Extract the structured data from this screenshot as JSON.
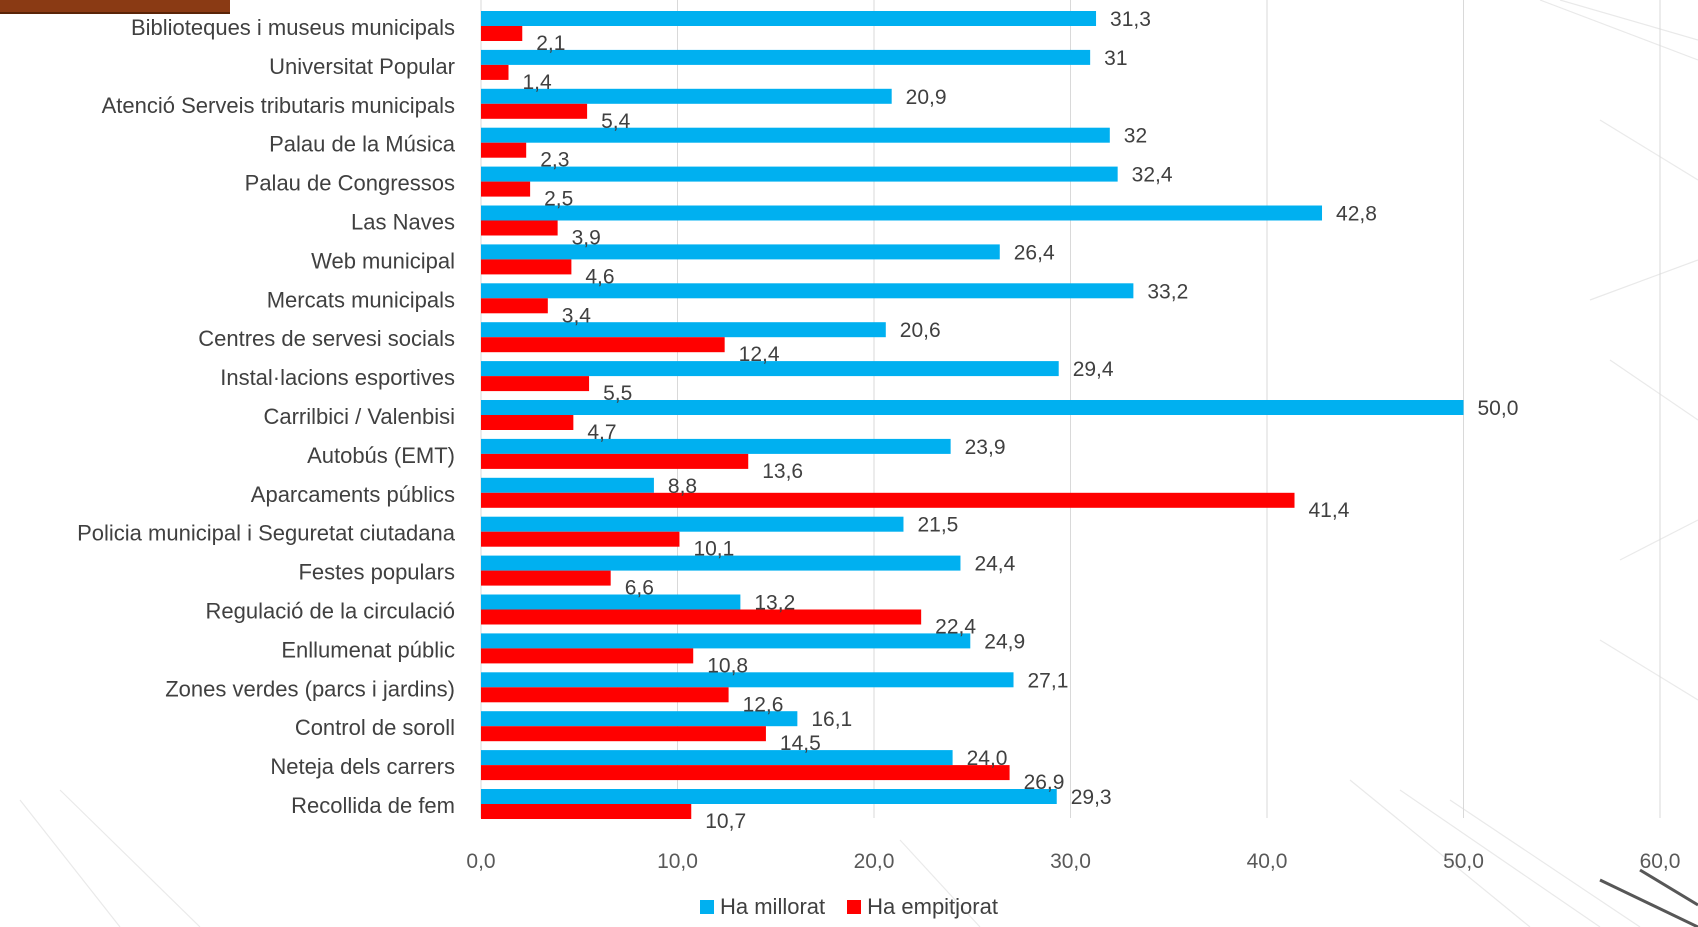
{
  "colors": {
    "improved": "#00B0F0",
    "worsened": "#FF0000"
  },
  "chart_data": {
    "type": "bar",
    "orientation": "horizontal",
    "categories": [
      "Biblioteques i museus municipals",
      "Universitat Popular",
      "Atenció Serveis tributaris municipals",
      "Palau de la Música",
      "Palau de Congressos",
      "Las Naves",
      "Web municipal",
      "Mercats municipals",
      "Centres de servesi socials",
      "Instal·lacions esportives",
      "Carrilbici / Valenbisi",
      "Autobús (EMT)",
      "Aparcaments públics",
      "Policia municipal i Seguretat ciutadana",
      "Festes populars",
      "Regulació de la circulació",
      "Enllumenat públic",
      "Zones verdes (parcs i jardins)",
      "Control de soroll",
      "Neteja dels carrers",
      "Recollida de fem"
    ],
    "series": [
      {
        "name": "Ha millorat",
        "color": "#00B0F0",
        "values": [
          31.3,
          31,
          20.9,
          32,
          32.4,
          42.8,
          26.4,
          33.2,
          20.6,
          29.4,
          50.0,
          23.9,
          8.8,
          21.5,
          24.4,
          13.2,
          24.9,
          27.1,
          16.1,
          24.0,
          29.3
        ],
        "labels": [
          "31,3",
          "31",
          "20,9",
          "32",
          "32,4",
          "42,8",
          "26,4",
          "33,2",
          "20,6",
          "29,4",
          "50,0",
          "23,9",
          "8,8",
          "21,5",
          "24,4",
          "13,2",
          "24,9",
          "27,1",
          "16,1",
          "24,0",
          "29,3"
        ]
      },
      {
        "name": "Ha empitjorat",
        "color": "#FF0000",
        "values": [
          2.1,
          1.4,
          5.4,
          2.3,
          2.5,
          3.9,
          4.6,
          3.4,
          12.4,
          5.5,
          4.7,
          13.6,
          41.4,
          10.1,
          6.6,
          22.4,
          10.8,
          12.6,
          14.5,
          26.9,
          10.7
        ],
        "labels": [
          "2,1",
          "1,4",
          "5,4",
          "2,3",
          "2,5",
          "3,9",
          "4,6",
          "3,4",
          "12,4",
          "5,5",
          "4,7",
          "13,6",
          "41,4",
          "10,1",
          "6,6",
          "22,4",
          "10,8",
          "12,6",
          "14,5",
          "26,9",
          "10,7"
        ]
      }
    ],
    "x_ticks": [
      "0,0",
      "10,0",
      "20,0",
      "30,0",
      "40,0",
      "50,0",
      "60,0"
    ],
    "xlim": [
      0,
      60
    ],
    "grid": true,
    "legend_position": "bottom"
  }
}
